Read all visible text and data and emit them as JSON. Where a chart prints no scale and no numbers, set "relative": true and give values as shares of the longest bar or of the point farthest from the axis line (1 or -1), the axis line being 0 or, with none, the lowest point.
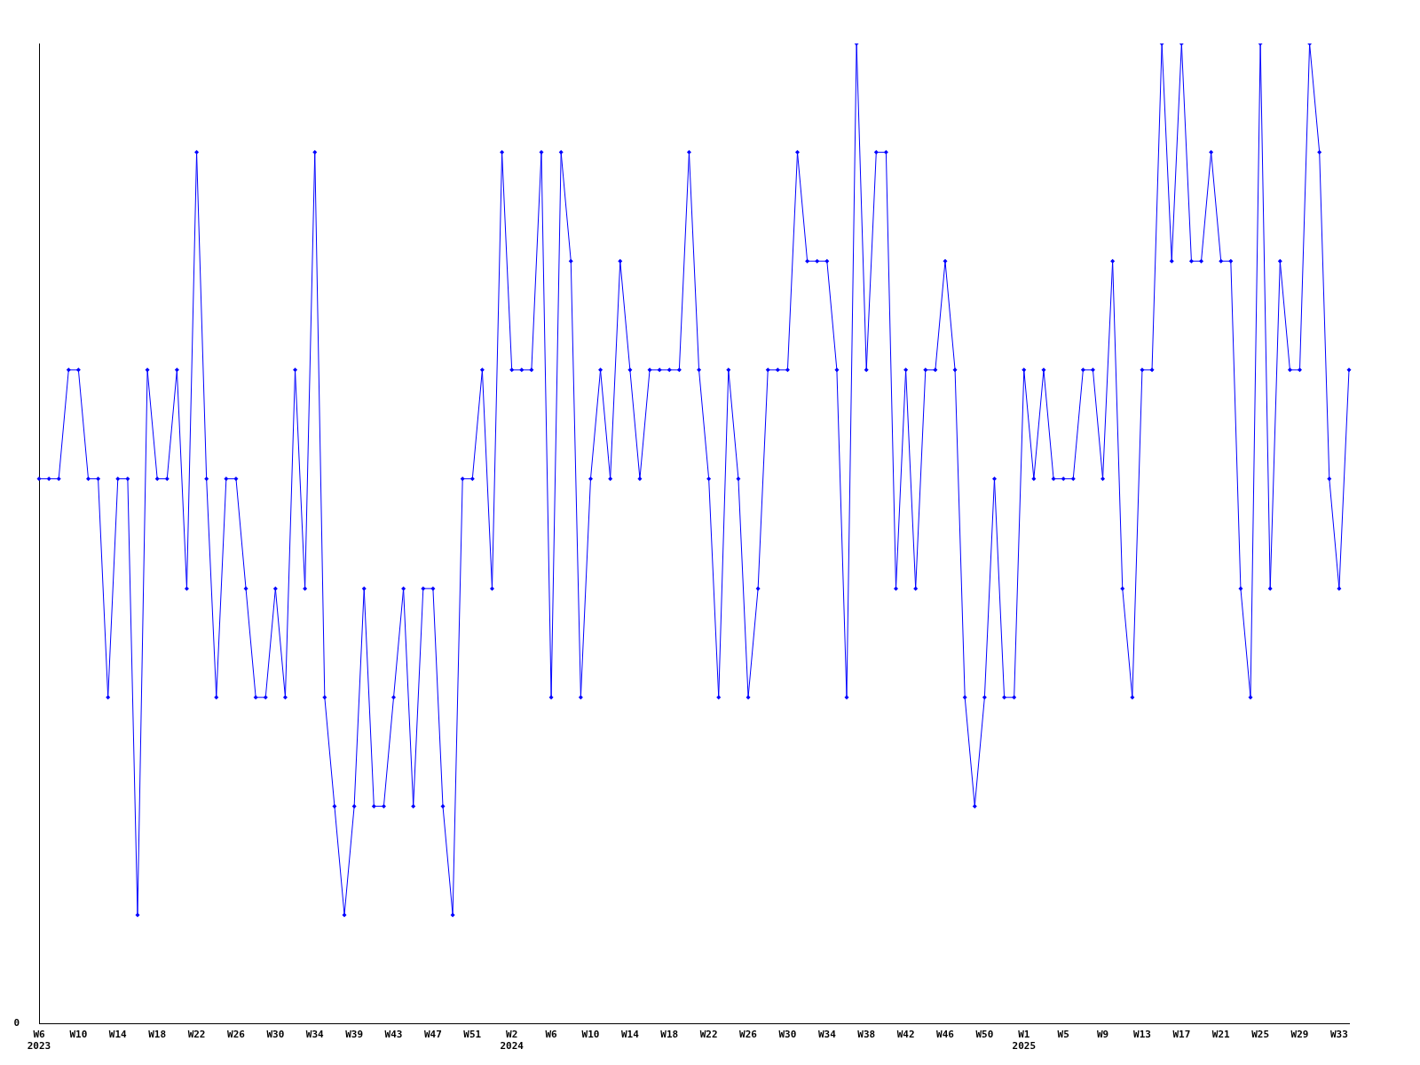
{
  "chart_data": {
    "type": "line",
    "relative": true,
    "marker": "diamond",
    "grid": false,
    "legend": false,
    "annotations": [
      "0"
    ],
    "categories": [
      "W6\n2023",
      null,
      null,
      null,
      "W10",
      null,
      null,
      null,
      "W14",
      null,
      null,
      null,
      "W18",
      null,
      null,
      null,
      "W22",
      null,
      null,
      null,
      "W26",
      null,
      null,
      null,
      "W30",
      null,
      null,
      null,
      "W34",
      null,
      null,
      null,
      "W39",
      null,
      null,
      null,
      "W43",
      null,
      null,
      null,
      "W47",
      null,
      null,
      null,
      "W51",
      null,
      null,
      null,
      "W2\n2024",
      null,
      null,
      null,
      "W6",
      null,
      null,
      null,
      "W10",
      null,
      null,
      null,
      "W14",
      null,
      null,
      null,
      "W18",
      null,
      null,
      null,
      "W22",
      null,
      null,
      null,
      "W26",
      null,
      null,
      null,
      "W30",
      null,
      null,
      null,
      "W34",
      null,
      null,
      null,
      "W38",
      null,
      null,
      null,
      "W42",
      null,
      null,
      null,
      "W46",
      null,
      null,
      null,
      "W50",
      null,
      null,
      null,
      "W1\n2025",
      null,
      null,
      null,
      "W5",
      null,
      null,
      null,
      "W9",
      null,
      null,
      null,
      "W13",
      null,
      null,
      null,
      "W17",
      null,
      null,
      null,
      "W21",
      null,
      null,
      null,
      "W25",
      null,
      null,
      null,
      "W29",
      null,
      null,
      null,
      "W33",
      null
    ],
    "series": [
      {
        "color": "#0000ff",
        "values": [
          0.556,
          0.556,
          0.556,
          0.667,
          0.667,
          0.556,
          0.556,
          0.333,
          0.556,
          0.556,
          0.111,
          0.667,
          0.556,
          0.556,
          0.667,
          0.444,
          0.889,
          0.556,
          0.333,
          0.556,
          0.556,
          0.444,
          0.333,
          0.333,
          0.444,
          0.333,
          0.667,
          0.444,
          0.889,
          0.333,
          0.222,
          0.111,
          0.222,
          0.444,
          0.222,
          0.222,
          0.333,
          0.444,
          0.222,
          0.444,
          0.444,
          0.222,
          0.111,
          0.556,
          0.556,
          0.667,
          0.444,
          0.889,
          0.667,
          0.667,
          0.667,
          0.889,
          0.333,
          0.889,
          0.778,
          0.333,
          0.556,
          0.667,
          0.556,
          0.778,
          0.667,
          0.556,
          0.667,
          0.667,
          0.667,
          0.667,
          0.889,
          0.667,
          0.556,
          0.333,
          0.667,
          0.556,
          0.333,
          0.444,
          0.667,
          0.667,
          0.667,
          0.889,
          0.778,
          0.778,
          0.778,
          0.667,
          0.333,
          1,
          0.667,
          0.889,
          0.889,
          0.444,
          0.667,
          0.444,
          0.667,
          0.667,
          0.778,
          0.667,
          0.333,
          0.222,
          0.333,
          0.556,
          0.333,
          0.333,
          0.667,
          0.556,
          0.667,
          0.556,
          0.556,
          0.556,
          0.667,
          0.667,
          0.556,
          0.778,
          0.444,
          0.333,
          0.667,
          0.667,
          1,
          0.778,
          1,
          0.778,
          0.778,
          0.889,
          0.778,
          0.778,
          0.444,
          0.333,
          1,
          0.444,
          0.778,
          0.667,
          0.667,
          1,
          0.889,
          0.556,
          0.444,
          0.667
        ]
      }
    ]
  }
}
